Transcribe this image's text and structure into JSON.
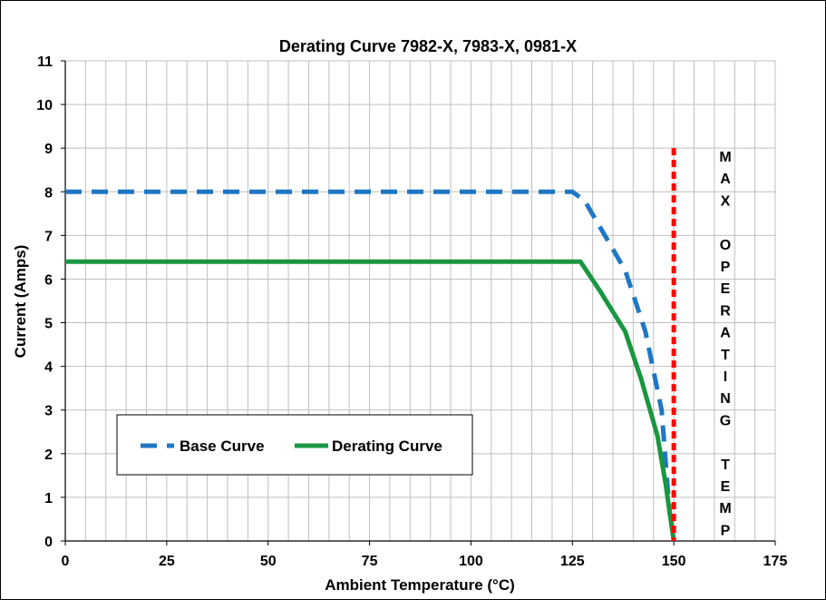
{
  "chart_data": {
    "type": "line",
    "title": "Derating Curve 7982-X, 7983-X, 0981-X",
    "xlabel": "Ambient Temperature (°C)",
    "ylabel": "Current (Amps)",
    "xlim": [
      0,
      175
    ],
    "ylim": [
      0,
      11
    ],
    "x_ticks": [
      0,
      25,
      50,
      75,
      100,
      125,
      150,
      175
    ],
    "y_ticks": [
      0,
      1,
      2,
      3,
      4,
      5,
      6,
      7,
      8,
      9,
      10,
      11
    ],
    "x_minor_grid_step": 5,
    "grid": true,
    "legend_placement": "lower-left",
    "series": [
      {
        "name": "Base Curve",
        "style": "dashed",
        "color": "#1F77C4",
        "x": [
          0,
          125,
          128,
          133,
          138,
          143,
          147,
          149
        ],
        "y": [
          8,
          8,
          7.8,
          7.0,
          6.2,
          4.8,
          3.0,
          0.6
        ]
      },
      {
        "name": "Derating Curve",
        "style": "solid",
        "color": "#1A9641",
        "x": [
          0,
          127,
          132,
          138,
          142,
          146,
          148,
          150
        ],
        "y": [
          6.4,
          6.4,
          5.7,
          4.8,
          3.7,
          2.4,
          1.3,
          0
        ]
      }
    ],
    "max_temp_line": {
      "x": 150,
      "y_top": 9,
      "color": "#FF0000",
      "style": "dotted"
    },
    "annotation_letters": [
      "M",
      "A",
      "X",
      "",
      "O",
      "P",
      "E",
      "R",
      "A",
      "T",
      "I",
      "N",
      "G",
      "",
      "T",
      "E",
      "M",
      "P"
    ]
  }
}
